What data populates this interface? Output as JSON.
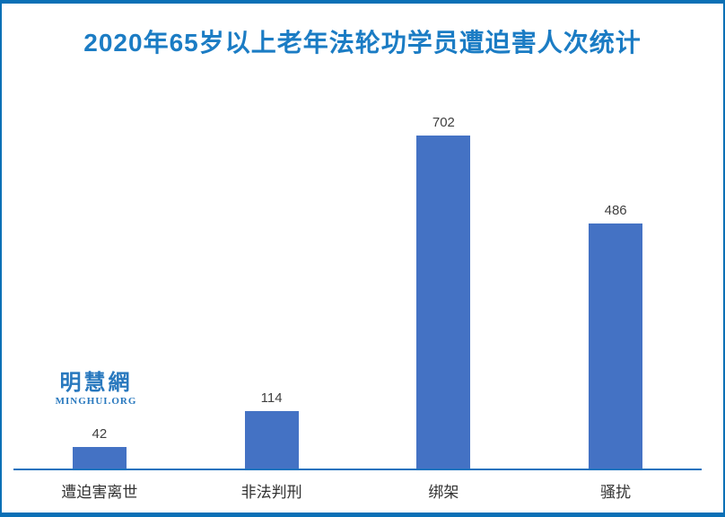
{
  "chart_data": {
    "type": "bar",
    "title": "2020年65岁以上老年法轮功学员遭迫害人次统计",
    "categories": [
      "遭迫害离世",
      "非法判刑",
      "绑架",
      "骚扰"
    ],
    "values": [
      42,
      114,
      702,
      486
    ],
    "data_labels": [
      42,
      114,
      702,
      486
    ],
    "xlabel": "",
    "ylabel": "",
    "ylim": [
      0,
      702
    ],
    "grid": false,
    "legend": false,
    "y_axis_visible": false,
    "bar_color": "#4472c4"
  },
  "watermark": {
    "logo_text": "明慧網",
    "logo_subtext": "MINGHUI.ORG"
  },
  "colors": {
    "frame_border": "#0b70b6",
    "title_text": "#1b7cc4",
    "bar_fill": "#4472c4",
    "axis_line": "#1e73be",
    "value_label": "#404040",
    "category_label": "#333333",
    "logo": "#2878be",
    "background": "#ffffff"
  }
}
